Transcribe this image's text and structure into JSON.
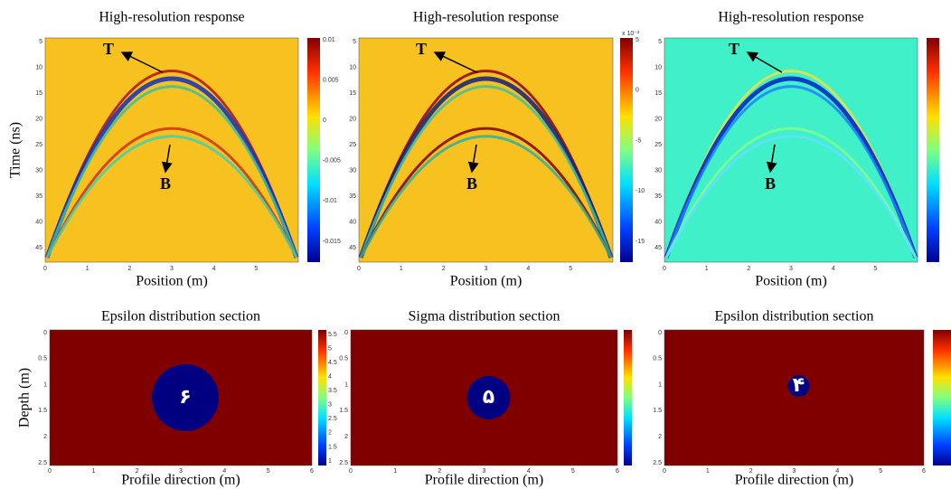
{
  "top_panels": [
    {
      "title": "High-resolution response",
      "xlabel": "Position (m)",
      "ylabel": "Time (ns)",
      "annotations": [
        "T",
        "B"
      ],
      "xticks": [
        "0",
        "1",
        "2",
        "3",
        "4",
        "5"
      ],
      "yticks": [
        "5",
        "10",
        "15",
        "20",
        "25",
        "30",
        "35",
        "40",
        "45"
      ],
      "colorbar_ticks": [
        "0.01",
        "0.005",
        "0",
        "-0.005",
        "-0.01",
        "-0.015"
      ]
    },
    {
      "title": "High-resolution response",
      "xlabel": "Position (m)",
      "annotations": [
        "T",
        "B"
      ],
      "xticks": [
        "0",
        "1",
        "2",
        "3",
        "4",
        "5"
      ],
      "yticks": [
        "5",
        "10",
        "15",
        "20",
        "25",
        "30",
        "35",
        "40",
        "45"
      ],
      "colorbar_scale": "x 10⁻³",
      "colorbar_ticks": [
        "5",
        "0",
        "-5",
        "-10",
        "-15"
      ]
    },
    {
      "title": "High-resolution response",
      "xlabel": "Position (m)",
      "annotations": [
        "T",
        "B"
      ],
      "xticks": [
        "0",
        "1",
        "2",
        "3",
        "4",
        "5"
      ],
      "yticks": [
        "5",
        "10",
        "15",
        "20",
        "25",
        "30",
        "35",
        "40",
        "45"
      ]
    }
  ],
  "bottom_panels": [
    {
      "title": "Epsilon distribution section",
      "xlabel": "Profile direction (m)",
      "ylabel": "Depth (m)",
      "circle_label": "۶",
      "xticks": [
        "0",
        "1",
        "2",
        "3",
        "4",
        "5",
        "6"
      ],
      "yticks": [
        "0",
        "0.5",
        "1",
        "1.5",
        "2",
        "2.5"
      ],
      "colorbar_ticks": [
        "5.5",
        "5",
        "4.5",
        "4",
        "3.5",
        "3",
        "2.5",
        "2",
        "1.5",
        "1"
      ]
    },
    {
      "title": "Sigma distribution section",
      "xlabel": "Profile direction (m)",
      "circle_label": "۵",
      "xticks": [
        "0",
        "1",
        "2",
        "3",
        "4",
        "5",
        "6"
      ],
      "yticks": [
        "0",
        "0.5",
        "1",
        "1.5",
        "2",
        "2.5"
      ]
    },
    {
      "title": "Epsilon distribution section",
      "xlabel": "Profile direction (m)",
      "circle_label": "۴",
      "xticks": [
        "0",
        "1",
        "2",
        "3",
        "4",
        "5",
        "6"
      ],
      "yticks": [
        "0",
        "0.5",
        "1",
        "1.5",
        "2",
        "2.5"
      ]
    }
  ]
}
